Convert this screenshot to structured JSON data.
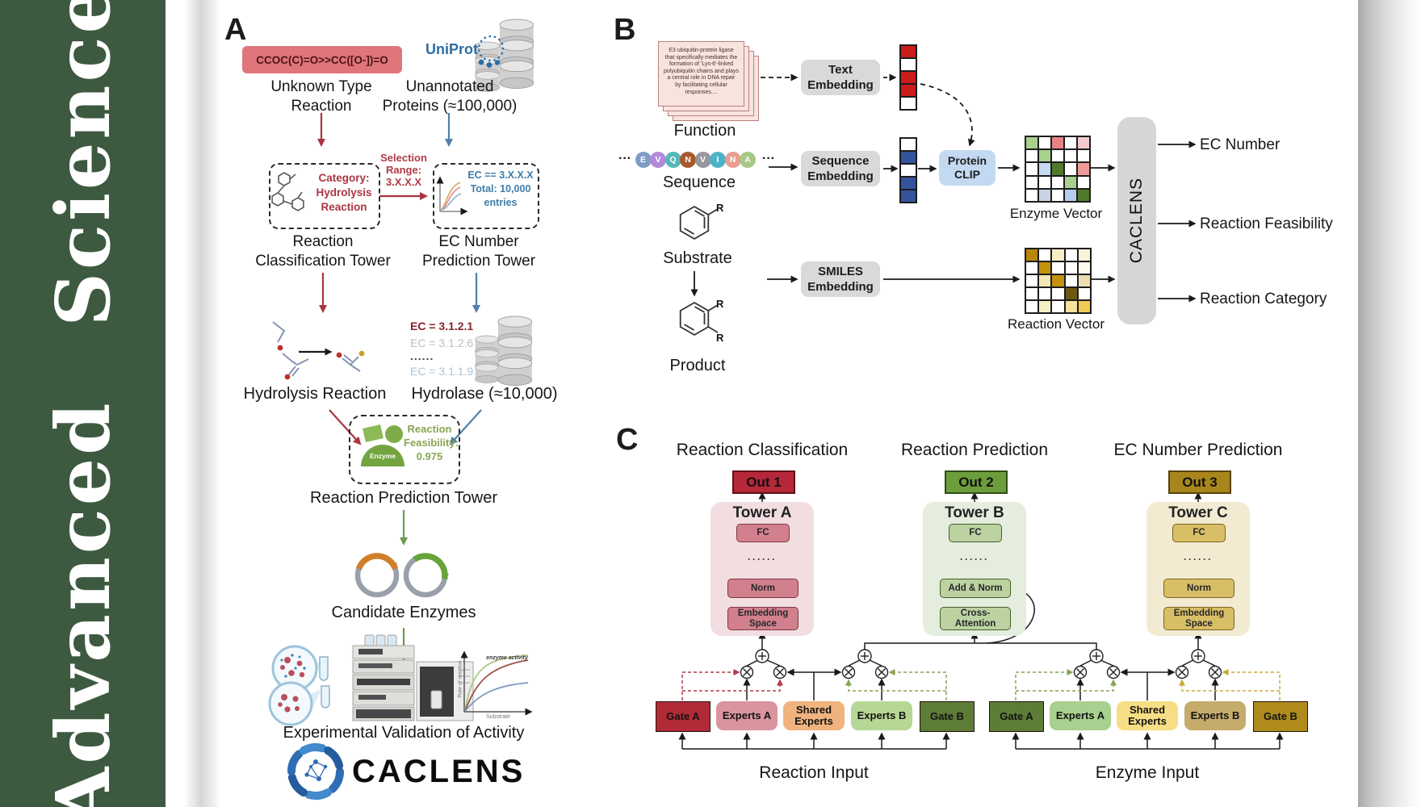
{
  "sidebar": {
    "title": "Advanced Science"
  },
  "colors": {
    "journal_green": "#3d5a41",
    "uniprot_blue": "#2c6da6",
    "red_accent": "#a93540",
    "blue_accent": "#4f7fa8",
    "green_accent": "#6d9a50"
  },
  "panelA": {
    "label": "A",
    "smiles": "CCOC(C)=O>>CC([O-])=O",
    "unknown": "Unknown Type\nReaction",
    "uniprot": "UniProt",
    "unannotated": "Unannotated\nProteins (≈100,000)",
    "category": "Category:\nHydrolysis\nReaction",
    "selection": "Selection\nRange:\n3.X.X.X",
    "ec_box": "EC == 3.X.X.X\nTotal: 10,000\nentries",
    "classification_tower": "Reaction\nClassification Tower",
    "ec_tower": "EC Number\nPrediction Tower",
    "hydrolysis": "Hydrolysis Reaction",
    "ec_list": [
      "EC = 3.1.2.1",
      "EC = 3.1.2.6",
      "......",
      "EC = 3.1.1.9"
    ],
    "hydrolase": "Hydrolase (≈10,000)",
    "enzyme": "Enzyme",
    "feasibility": "Reaction\nFeasibility:\n0.975",
    "prediction_tower": "Reaction Prediction Tower",
    "candidates": "Candidate Enzymes",
    "plot": {
      "curve_label": "enzyme activity",
      "ylabel": "Rate of reaction",
      "xlabel": "Substrate"
    },
    "validation": "Experimental Validation of Activity",
    "logo": "CACLENS"
  },
  "panelB": {
    "label": "B",
    "function_card": "E3 ubiquitin-protein ligase that specifically mediates the formation of 'Lys-6'-linked polyubiquitin chains and plays a central role in DNA repair by facilitating cellular responses....",
    "function_label": "Function",
    "dots": "···",
    "sequence_label": "Sequence",
    "sequence": [
      {
        "ch": "E",
        "color": "#7f9cc7"
      },
      {
        "ch": "V",
        "color": "#b28ad8"
      },
      {
        "ch": "Q",
        "color": "#56b7b9"
      },
      {
        "ch": "N",
        "color": "#a7592b"
      },
      {
        "ch": "V",
        "color": "#96979f"
      },
      {
        "ch": "I",
        "color": "#4fb3c7"
      },
      {
        "ch": "N",
        "color": "#e99e90"
      },
      {
        "ch": "A",
        "color": "#a5c885"
      }
    ],
    "text_embedding": "Text\nEmbedding",
    "sequence_embedding": "Sequence\nEmbedding",
    "smiles_embedding": "SMILES\nEmbedding",
    "protein_clip": "Protein\nCLIP",
    "substrate": "Substrate",
    "product": "Product",
    "r_label": "R",
    "text_vector": [
      "#cc1b1b",
      "#ffffff",
      "#cc1b1b",
      "#cc1b1b",
      "#ffffff"
    ],
    "seq_vector": [
      "#ffffff",
      "#33549c",
      "#ffffff",
      "#33549c",
      "#33549c"
    ],
    "enzyme_matrix": [
      "#a9d18e",
      "#ffffff",
      "#e88383",
      "#ffffff",
      "#f5c9cd",
      "#ffffff",
      "#a9d18e",
      "#ffffff",
      "#ffffff",
      "#ffffff",
      "#ffffff",
      "#c6daf2",
      "#4e7a29",
      "#ffffff",
      "#ee9a9a",
      "#ffffff",
      "#ffffff",
      "#ffffff",
      "#a9d18e",
      "#ffffff",
      "#ffffff",
      "#c9d3e3",
      "#ffffff",
      "#b5cef0",
      "#4e7a29"
    ],
    "reaction_matrix": [
      "#b8860b",
      "#ffffff",
      "#f7eec6",
      "#ffffff",
      "#faf4d9",
      "#ffffff",
      "#c3920e",
      "#ffffff",
      "#ffffff",
      "#fdfaee",
      "#ffffff",
      "#f3e6b5",
      "#c3920e",
      "#ffffff",
      "#eeddae",
      "#ffffff",
      "#ffffff",
      "#ffffff",
      "#6b5a10",
      "#ffffff",
      "#ffffff",
      "#f7eec6",
      "#ffffff",
      "#f3e19d",
      "#eecb53"
    ],
    "enzyme_vector_label": "Enzyme Vector",
    "reaction_vector_label": "Reaction Vector",
    "caclens": "CACLENS",
    "outputs": [
      "EC Number",
      "Reaction Feasibility",
      "Reaction Category"
    ]
  },
  "panelC": {
    "label": "C",
    "towers": [
      {
        "title": "Reaction Classification",
        "out": "Out 1",
        "name": "Tower A",
        "fc": "FC",
        "dots": "······",
        "norm": "Norm",
        "base": "Embedding\nSpace"
      },
      {
        "title": "Reaction Prediction",
        "out": "Out 2",
        "name": "Tower B",
        "fc": "FC",
        "dots": "······",
        "norm": "Add & Norm",
        "base": "Cross-\nAttention"
      },
      {
        "title": "EC Number Prediction",
        "out": "Out 3",
        "name": "Tower C",
        "fc": "FC",
        "dots": "······",
        "norm": "Norm",
        "base": "Embedding\nSpace"
      }
    ],
    "groups": [
      {
        "gateA": "Gate A",
        "expertsA": "Experts A",
        "shared": "Shared\nExperts",
        "expertsB": "Experts B",
        "gateB": "Gate B",
        "input": "Reaction Input"
      },
      {
        "gateA": "Gate A",
        "expertsA": "Experts A",
        "shared": "Shared\nExperts",
        "expertsB": "Experts B",
        "gateB": "Gate B",
        "input": "Enzyme Input"
      }
    ]
  }
}
